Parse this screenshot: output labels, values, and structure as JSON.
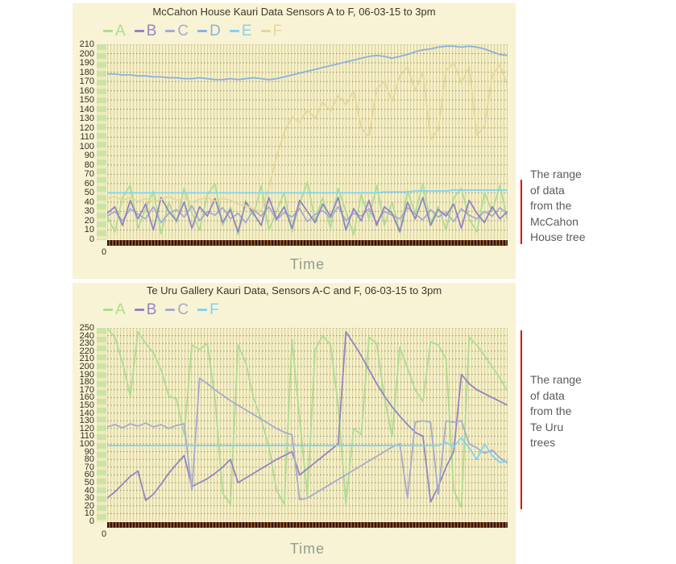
{
  "page": {
    "background": "#ffffff",
    "panel_background": "#f8f3d4"
  },
  "annotations": {
    "top": {
      "line_color": "#e60f00",
      "text_color": "#5b5b5b",
      "lines": [
        "The range",
        "of data",
        "from the",
        "McCahon",
        "House tree"
      ]
    },
    "bottom": {
      "line_color": "#e60f00",
      "text_color": "#5b5b5b",
      "lines": [
        "The range",
        "of data",
        "from the",
        "Te Uru",
        "trees"
      ]
    }
  },
  "chart_data": [
    {
      "type": "line",
      "title": "McCahon House Kauri Data Sensors A to F, 06-03-15 to 3pm",
      "xlabel": "Time",
      "origin_label": "0",
      "ylim": [
        0,
        210
      ],
      "ytick_step": 10,
      "yticks": [
        210,
        200,
        190,
        180,
        170,
        160,
        150,
        140,
        130,
        120,
        110,
        100,
        90,
        80,
        70,
        60,
        50,
        40,
        30,
        20,
        10,
        0
      ],
      "grid": true,
      "legend_position": "top-left",
      "draw_order": [
        "A",
        "C",
        "B",
        "F",
        "E",
        "D"
      ],
      "series": [
        {
          "name": "A",
          "color": "#addc92",
          "values": [
            25,
            8,
            45,
            58,
            12,
            33,
            52,
            6,
            40,
            18,
            55,
            28,
            10,
            48,
            60,
            15,
            35,
            5,
            42,
            25,
            58,
            10,
            30,
            50,
            8,
            38,
            62,
            20,
            45,
            12,
            55,
            30,
            5,
            48,
            22,
            58,
            15,
            40,
            8,
            52,
            28,
            60,
            18,
            35,
            10,
            45,
            55,
            22,
            8,
            50,
            30,
            58,
            20
          ]
        },
        {
          "name": "B",
          "color": "#9186c0",
          "values": [
            28,
            35,
            15,
            42,
            22,
            38,
            10,
            45,
            30,
            20,
            40,
            12,
            35,
            25,
            44,
            18,
            32,
            8,
            40,
            28,
            15,
            45,
            22,
            35,
            12,
            42,
            30,
            18,
            38,
            25,
            45,
            10,
            33,
            20,
            42,
            15,
            35,
            28,
            8,
            40,
            22,
            45,
            15,
            32,
            25,
            38,
            12,
            42,
            28,
            18,
            35,
            22,
            30
          ]
        },
        {
          "name": "C",
          "color": "#a6abcd",
          "values": [
            25,
            30,
            20,
            33,
            27,
            22,
            35,
            18,
            28,
            32,
            24,
            36,
            20,
            30,
            26,
            34,
            22,
            28,
            18,
            32,
            25,
            35,
            21,
            29,
            24,
            33,
            19,
            27,
            31,
            23,
            35,
            20,
            28,
            25,
            33,
            18,
            30,
            26,
            22,
            34,
            27,
            21,
            32,
            24,
            29,
            19,
            33,
            26,
            22,
            30,
            25,
            34,
            27
          ]
        },
        {
          "name": "D",
          "color": "#8db0de",
          "values": [
            178,
            178,
            177,
            177,
            176,
            176,
            175,
            175,
            174,
            174,
            173,
            173,
            174,
            173,
            172,
            172,
            173,
            172,
            173,
            174,
            173,
            172,
            173,
            175,
            177,
            179,
            181,
            183,
            185,
            187,
            189,
            191,
            193,
            195,
            197,
            198,
            197,
            195,
            197,
            199,
            202,
            204,
            205,
            207,
            208,
            208,
            207,
            208,
            207,
            205,
            202,
            199,
            198
          ]
        },
        {
          "name": "E",
          "color": "#7fd4f2",
          "values": [
            50,
            50,
            50,
            50,
            50,
            50,
            50,
            50,
            50,
            50,
            50,
            50,
            50,
            50,
            50,
            50,
            50,
            50,
            50,
            50,
            50,
            50,
            50,
            50,
            50,
            50,
            50,
            50,
            50,
            50,
            50,
            50,
            50,
            50,
            50,
            50,
            51,
            51,
            51,
            51,
            52,
            52,
            52,
            52,
            52,
            53,
            53,
            53,
            53,
            53,
            53,
            53,
            53
          ]
        },
        {
          "name": "F",
          "color": "#e5d79b",
          "values": [
            44,
            46,
            42,
            45,
            41,
            44,
            40,
            43,
            46,
            42,
            44,
            40,
            43,
            45,
            41,
            44,
            42,
            38,
            36,
            33,
            30,
            55,
            90,
            115,
            132,
            126,
            140,
            130,
            148,
            138,
            155,
            145,
            160,
            120,
            110,
            162,
            170,
            148,
            176,
            186,
            160,
            180,
            108,
            118,
            182,
            190,
            168,
            186,
            112,
            122,
            176,
            188,
            165
          ]
        }
      ]
    },
    {
      "type": "line",
      "title": "Te Uru Gallery Kauri Data, Sensors A-C and F, 06-03-15 to 3pm",
      "xlabel": "Time",
      "origin_label": "0",
      "ylim": [
        0,
        250
      ],
      "ytick_step": 10,
      "yticks": [
        250,
        240,
        230,
        220,
        210,
        200,
        190,
        180,
        170,
        160,
        150,
        140,
        130,
        120,
        110,
        100,
        90,
        80,
        70,
        60,
        50,
        40,
        30,
        20,
        10,
        0
      ],
      "grid": true,
      "legend_position": "top-left",
      "draw_order": [
        "A",
        "B",
        "C",
        "F"
      ],
      "series": [
        {
          "name": "A",
          "color": "#addc92",
          "values": [
            250,
            238,
            205,
            162,
            245,
            230,
            218,
            196,
            162,
            158,
            112,
            228,
            222,
            230,
            160,
            36,
            22,
            228,
            205,
            160,
            132,
            96,
            40,
            22,
            235,
            132,
            32,
            222,
            240,
            228,
            150,
            22,
            120,
            112,
            238,
            230,
            160,
            110,
            225,
            198,
            170,
            155,
            232,
            228,
            210,
            40,
            18,
            238,
            228,
            214,
            200,
            185,
            168
          ]
        },
        {
          "name": "B",
          "color": "#9186c0",
          "values": [
            30,
            38,
            48,
            58,
            65,
            27,
            35,
            48,
            62,
            74,
            85,
            45,
            50,
            55,
            62,
            70,
            80,
            50,
            56,
            62,
            68,
            74,
            80,
            85,
            90,
            60,
            68,
            76,
            84,
            92,
            100,
            245,
            230,
            214,
            196,
            178,
            162,
            148,
            136,
            125,
            115,
            110,
            25,
            45,
            70,
            90,
            190,
            178,
            170,
            165,
            160,
            155,
            150
          ]
        },
        {
          "name": "C",
          "color": "#a6abcd",
          "values": [
            122,
            125,
            121,
            126,
            123,
            127,
            122,
            125,
            120,
            124,
            126,
            40,
            185,
            178,
            170,
            163,
            156,
            150,
            144,
            138,
            132,
            126,
            120,
            115,
            112,
            28,
            30,
            36,
            42,
            48,
            54,
            60,
            66,
            72,
            78,
            84,
            90,
            96,
            100,
            30,
            128,
            130,
            128,
            35,
            130,
            128,
            130,
            100,
            95,
            88,
            92,
            82,
            75
          ]
        },
        {
          "name": "F",
          "color": "#7fd4f2",
          "values": [
            98,
            98,
            98,
            98,
            98,
            98,
            98,
            98,
            98,
            98,
            98,
            98,
            98,
            98,
            98,
            98,
            98,
            98,
            98,
            98,
            98,
            98,
            98,
            98,
            98,
            98,
            98,
            98,
            98,
            98,
            98,
            98,
            98,
            98,
            98,
            98,
            98,
            98,
            98,
            98,
            98,
            98,
            98,
            98,
            102,
            96,
            108,
            95,
            80,
            100,
            85,
            76,
            78
          ]
        }
      ]
    }
  ]
}
